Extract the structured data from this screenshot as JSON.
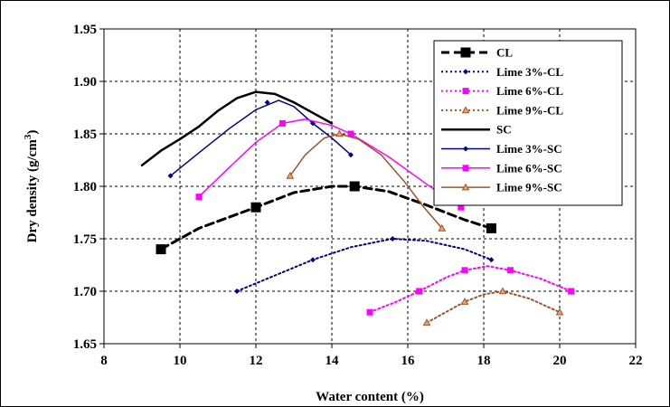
{
  "chart_data": {
    "type": "line",
    "xlabel": "Water content (%)",
    "ylabel": "Dry density (g/cm",
    "ylabel_superscript": "3",
    "ylabel_close": ")",
    "xlim": [
      8,
      22
    ],
    "ylim": [
      1.65,
      1.95
    ],
    "x_ticks": [
      "8",
      "10",
      "12",
      "14",
      "16",
      "18",
      "20",
      "22"
    ],
    "y_ticks": [
      "1.65",
      "1.70",
      "1.75",
      "1.80",
      "1.85",
      "1.90",
      "1.95"
    ],
    "grid": true,
    "legend_position": "top-right",
    "series": [
      {
        "name": "CL",
        "color": "#000000",
        "dash": "dashed",
        "width": 3,
        "marker": "square",
        "marker_size": 11,
        "points": [
          [
            9.5,
            1.74
          ],
          [
            12.0,
            1.78
          ],
          [
            14.6,
            1.8
          ],
          [
            18.2,
            1.76
          ]
        ],
        "curve": [
          [
            9.5,
            1.74
          ],
          [
            10.5,
            1.76
          ],
          [
            12.0,
            1.78
          ],
          [
            13.0,
            1.794
          ],
          [
            14.0,
            1.8
          ],
          [
            14.6,
            1.8
          ],
          [
            15.5,
            1.795
          ],
          [
            16.5,
            1.782
          ],
          [
            17.5,
            1.768
          ],
          [
            18.2,
            1.76
          ]
        ]
      },
      {
        "name": "Lime 3%-CL",
        "color": "#00008b",
        "dash": "dotted",
        "width": 2,
        "marker": "diamond",
        "marker_size": 6,
        "points": [
          [
            11.5,
            1.7
          ],
          [
            13.5,
            1.73
          ],
          [
            15.6,
            1.75
          ],
          [
            18.2,
            1.73
          ]
        ],
        "curve": [
          [
            11.5,
            1.7
          ],
          [
            12.5,
            1.715
          ],
          [
            13.5,
            1.73
          ],
          [
            14.5,
            1.742
          ],
          [
            15.6,
            1.75
          ],
          [
            16.5,
            1.748
          ],
          [
            17.5,
            1.74
          ],
          [
            18.2,
            1.73
          ]
        ]
      },
      {
        "name": "Lime 6%-CL",
        "color": "#ff00ff",
        "dash": "dotted",
        "width": 2,
        "marker": "square",
        "marker_size": 7,
        "points": [
          [
            15.0,
            1.68
          ],
          [
            16.3,
            1.7
          ],
          [
            17.5,
            1.72
          ],
          [
            18.7,
            1.72
          ],
          [
            20.3,
            1.7
          ]
        ],
        "curve": [
          [
            15.0,
            1.68
          ],
          [
            15.7,
            1.69
          ],
          [
            16.3,
            1.7
          ],
          [
            17.0,
            1.713
          ],
          [
            17.5,
            1.72
          ],
          [
            18.1,
            1.724
          ],
          [
            18.7,
            1.72
          ],
          [
            19.5,
            1.712
          ],
          [
            20.3,
            1.7
          ]
        ]
      },
      {
        "name": "Lime 9%-CL",
        "color": "#a0522d",
        "dash": "dotted",
        "width": 2,
        "marker": "triangle",
        "marker_size": 7,
        "points": [
          [
            16.5,
            1.67
          ],
          [
            17.5,
            1.69
          ],
          [
            18.5,
            1.7
          ],
          [
            20.0,
            1.68
          ]
        ],
        "curve": [
          [
            16.5,
            1.67
          ],
          [
            17.0,
            1.68
          ],
          [
            17.5,
            1.69
          ],
          [
            18.0,
            1.697
          ],
          [
            18.5,
            1.7
          ],
          [
            19.2,
            1.693
          ],
          [
            20.0,
            1.68
          ]
        ]
      },
      {
        "name": "SC",
        "color": "#000000",
        "dash": "solid",
        "width": 2.5,
        "marker": "none",
        "marker_size": 0,
        "points": [],
        "curve": [
          [
            9.0,
            1.82
          ],
          [
            9.5,
            1.834
          ],
          [
            10.0,
            1.845
          ],
          [
            10.5,
            1.857
          ],
          [
            11.0,
            1.872
          ],
          [
            11.5,
            1.884
          ],
          [
            12.0,
            1.89
          ],
          [
            12.5,
            1.888
          ],
          [
            13.0,
            1.88
          ],
          [
            13.5,
            1.87
          ],
          [
            14.0,
            1.86
          ]
        ]
      },
      {
        "name": "Lime 3%-SC",
        "color": "#00008b",
        "dash": "solid",
        "width": 1.5,
        "marker": "diamond",
        "marker_size": 6,
        "points": [
          [
            9.75,
            1.81
          ],
          [
            12.3,
            1.88
          ],
          [
            13.5,
            1.86
          ],
          [
            14.5,
            1.83
          ]
        ],
        "curve": [
          [
            9.75,
            1.81
          ],
          [
            10.5,
            1.832
          ],
          [
            11.3,
            1.855
          ],
          [
            12.0,
            1.873
          ],
          [
            12.6,
            1.882
          ],
          [
            13.0,
            1.876
          ],
          [
            13.5,
            1.86
          ],
          [
            14.0,
            1.846
          ],
          [
            14.5,
            1.83
          ]
        ]
      },
      {
        "name": "Lime 6%-SC",
        "color": "#ff00ff",
        "dash": "solid",
        "width": 1.5,
        "marker": "square",
        "marker_size": 7,
        "points": [
          [
            10.5,
            1.79
          ],
          [
            12.7,
            1.86
          ],
          [
            14.5,
            1.85
          ],
          [
            17.4,
            1.78
          ]
        ],
        "curve": [
          [
            10.5,
            1.79
          ],
          [
            11.3,
            1.818
          ],
          [
            12.0,
            1.842
          ],
          [
            12.7,
            1.86
          ],
          [
            13.3,
            1.864
          ],
          [
            14.0,
            1.858
          ],
          [
            14.5,
            1.85
          ],
          [
            15.5,
            1.828
          ],
          [
            16.5,
            1.802
          ],
          [
            17.4,
            1.78
          ]
        ]
      },
      {
        "name": "Lime 9%-SC",
        "color": "#a0522d",
        "dash": "solid",
        "width": 1.5,
        "marker": "triangle",
        "marker_size": 7,
        "points": [
          [
            12.9,
            1.81
          ],
          [
            14.2,
            1.85
          ],
          [
            16.9,
            1.76
          ]
        ],
        "curve": [
          [
            12.9,
            1.81
          ],
          [
            13.3,
            1.83
          ],
          [
            13.8,
            1.846
          ],
          [
            14.2,
            1.85
          ],
          [
            14.7,
            1.845
          ],
          [
            15.3,
            1.83
          ],
          [
            15.9,
            1.805
          ],
          [
            16.4,
            1.781
          ],
          [
            16.9,
            1.76
          ]
        ]
      }
    ]
  }
}
